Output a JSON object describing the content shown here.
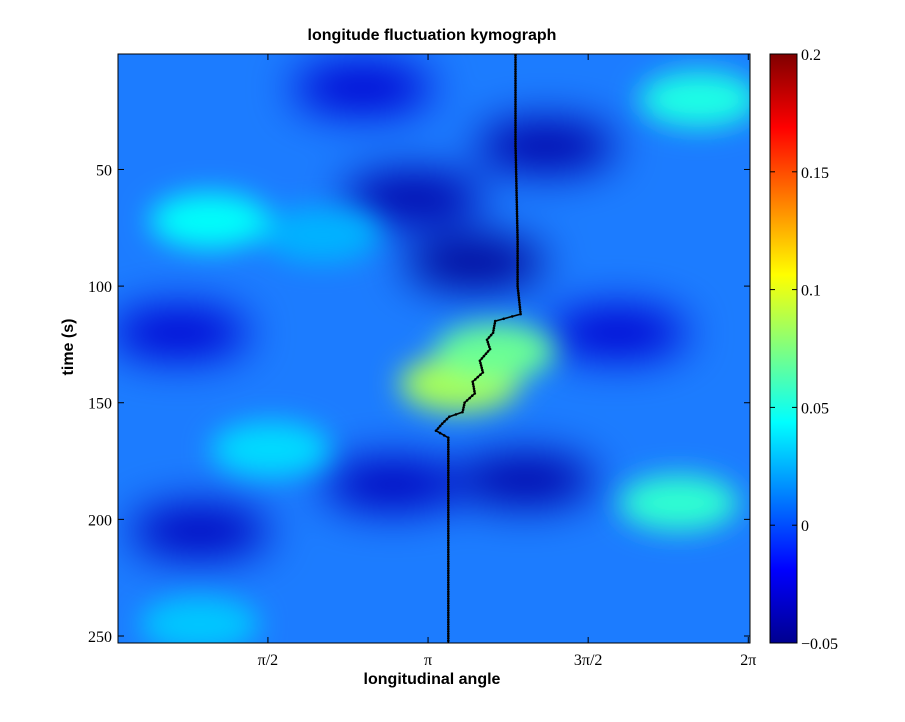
{
  "chart_data": {
    "type": "heatmap",
    "title": "longitude fluctuation kymograph",
    "xlabel": "longitudinal angle",
    "ylabel": "time (s)",
    "x_tick_labels": [
      "π/2",
      "π",
      "3π/2",
      "2π"
    ],
    "x_tick_values": [
      1.5708,
      3.1416,
      4.7124,
      6.2832
    ],
    "xlim": [
      0.1,
      6.3
    ],
    "y_tick_labels": [
      "50",
      "100",
      "150",
      "200",
      "250"
    ],
    "y_tick_values": [
      50,
      100,
      150,
      200,
      250
    ],
    "ylim": [
      0.5,
      253
    ],
    "y_reversed": true,
    "colorbar": {
      "tick_labels": [
        "0.2",
        "0.15",
        "0.1",
        "0.05",
        "0",
        "−0.05"
      ],
      "tick_values": [
        0.2,
        0.15,
        0.1,
        0.05,
        0,
        -0.05
      ],
      "range": [
        -0.05,
        0.2
      ],
      "colormap": "jet"
    },
    "hotspots": [
      {
        "angle": 3.45,
        "time": 142,
        "value": 0.085
      },
      {
        "angle": 3.8,
        "time": 128,
        "value": 0.07
      },
      {
        "angle": 5.6,
        "time": 193,
        "value": 0.055
      },
      {
        "angle": 5.8,
        "time": 20,
        "value": 0.05
      },
      {
        "angle": 1.0,
        "time": 72,
        "value": 0.045
      },
      {
        "angle": 1.6,
        "time": 170,
        "value": 0.035
      },
      {
        "angle": 0.9,
        "time": 245,
        "value": 0.03
      },
      {
        "angle": 2.1,
        "time": 78,
        "value": 0.025
      }
    ],
    "coldspots": [
      {
        "angle": 3.6,
        "time": 90,
        "value": -0.045
      },
      {
        "angle": 3.0,
        "time": 62,
        "value": -0.04
      },
      {
        "angle": 4.3,
        "time": 40,
        "value": -0.04
      },
      {
        "angle": 0.7,
        "time": 120,
        "value": -0.03
      },
      {
        "angle": 4.1,
        "time": 183,
        "value": -0.04
      },
      {
        "angle": 0.9,
        "time": 205,
        "value": -0.035
      },
      {
        "angle": 5.0,
        "time": 120,
        "value": -0.03
      },
      {
        "angle": 2.5,
        "time": 15,
        "value": -0.03
      },
      {
        "angle": 2.8,
        "time": 185,
        "value": -0.035
      }
    ],
    "track_series": {
      "points": [
        [
          4.0,
          1
        ],
        [
          4.0,
          20
        ],
        [
          4.0,
          40
        ],
        [
          4.01,
          60
        ],
        [
          4.02,
          80
        ],
        [
          4.02,
          100
        ],
        [
          4.05,
          112
        ],
        [
          3.8,
          115
        ],
        [
          3.78,
          120
        ],
        [
          3.72,
          123
        ],
        [
          3.75,
          127
        ],
        [
          3.65,
          132
        ],
        [
          3.68,
          137
        ],
        [
          3.58,
          141
        ],
        [
          3.6,
          146
        ],
        [
          3.5,
          150
        ],
        [
          3.48,
          154
        ],
        [
          3.35,
          156
        ],
        [
          3.28,
          159
        ],
        [
          3.22,
          162
        ],
        [
          3.34,
          165
        ],
        [
          3.34,
          185
        ],
        [
          3.34,
          205
        ],
        [
          3.34,
          225
        ],
        [
          3.34,
          253
        ]
      ]
    }
  }
}
